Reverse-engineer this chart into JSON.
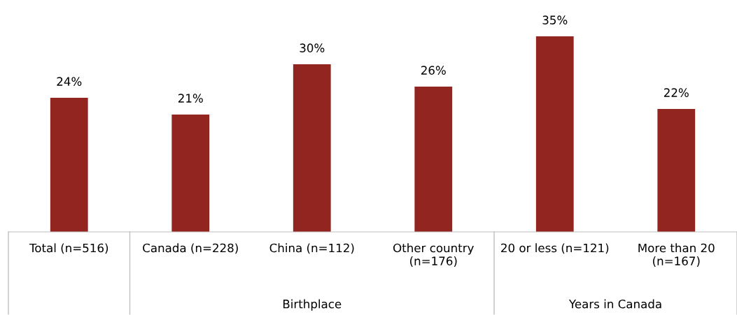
{
  "chart_data": {
    "type": "bar",
    "categories": [
      "Total (n=516)",
      "Canada (n=228)",
      "China (n=112)",
      "Other country\n(n=176)",
      "20 or less (n=121)",
      "More than 20\n(n=167)"
    ],
    "values": [
      24,
      21,
      30,
      26,
      35,
      22
    ],
    "color": "#922520",
    "data_labels": true,
    "value_labels": [
      "24%",
      "21%",
      "30%",
      "26%",
      "35%",
      "22%"
    ],
    "annotations": [
      "Birthplace",
      "Years in Canada"
    ]
  }
}
